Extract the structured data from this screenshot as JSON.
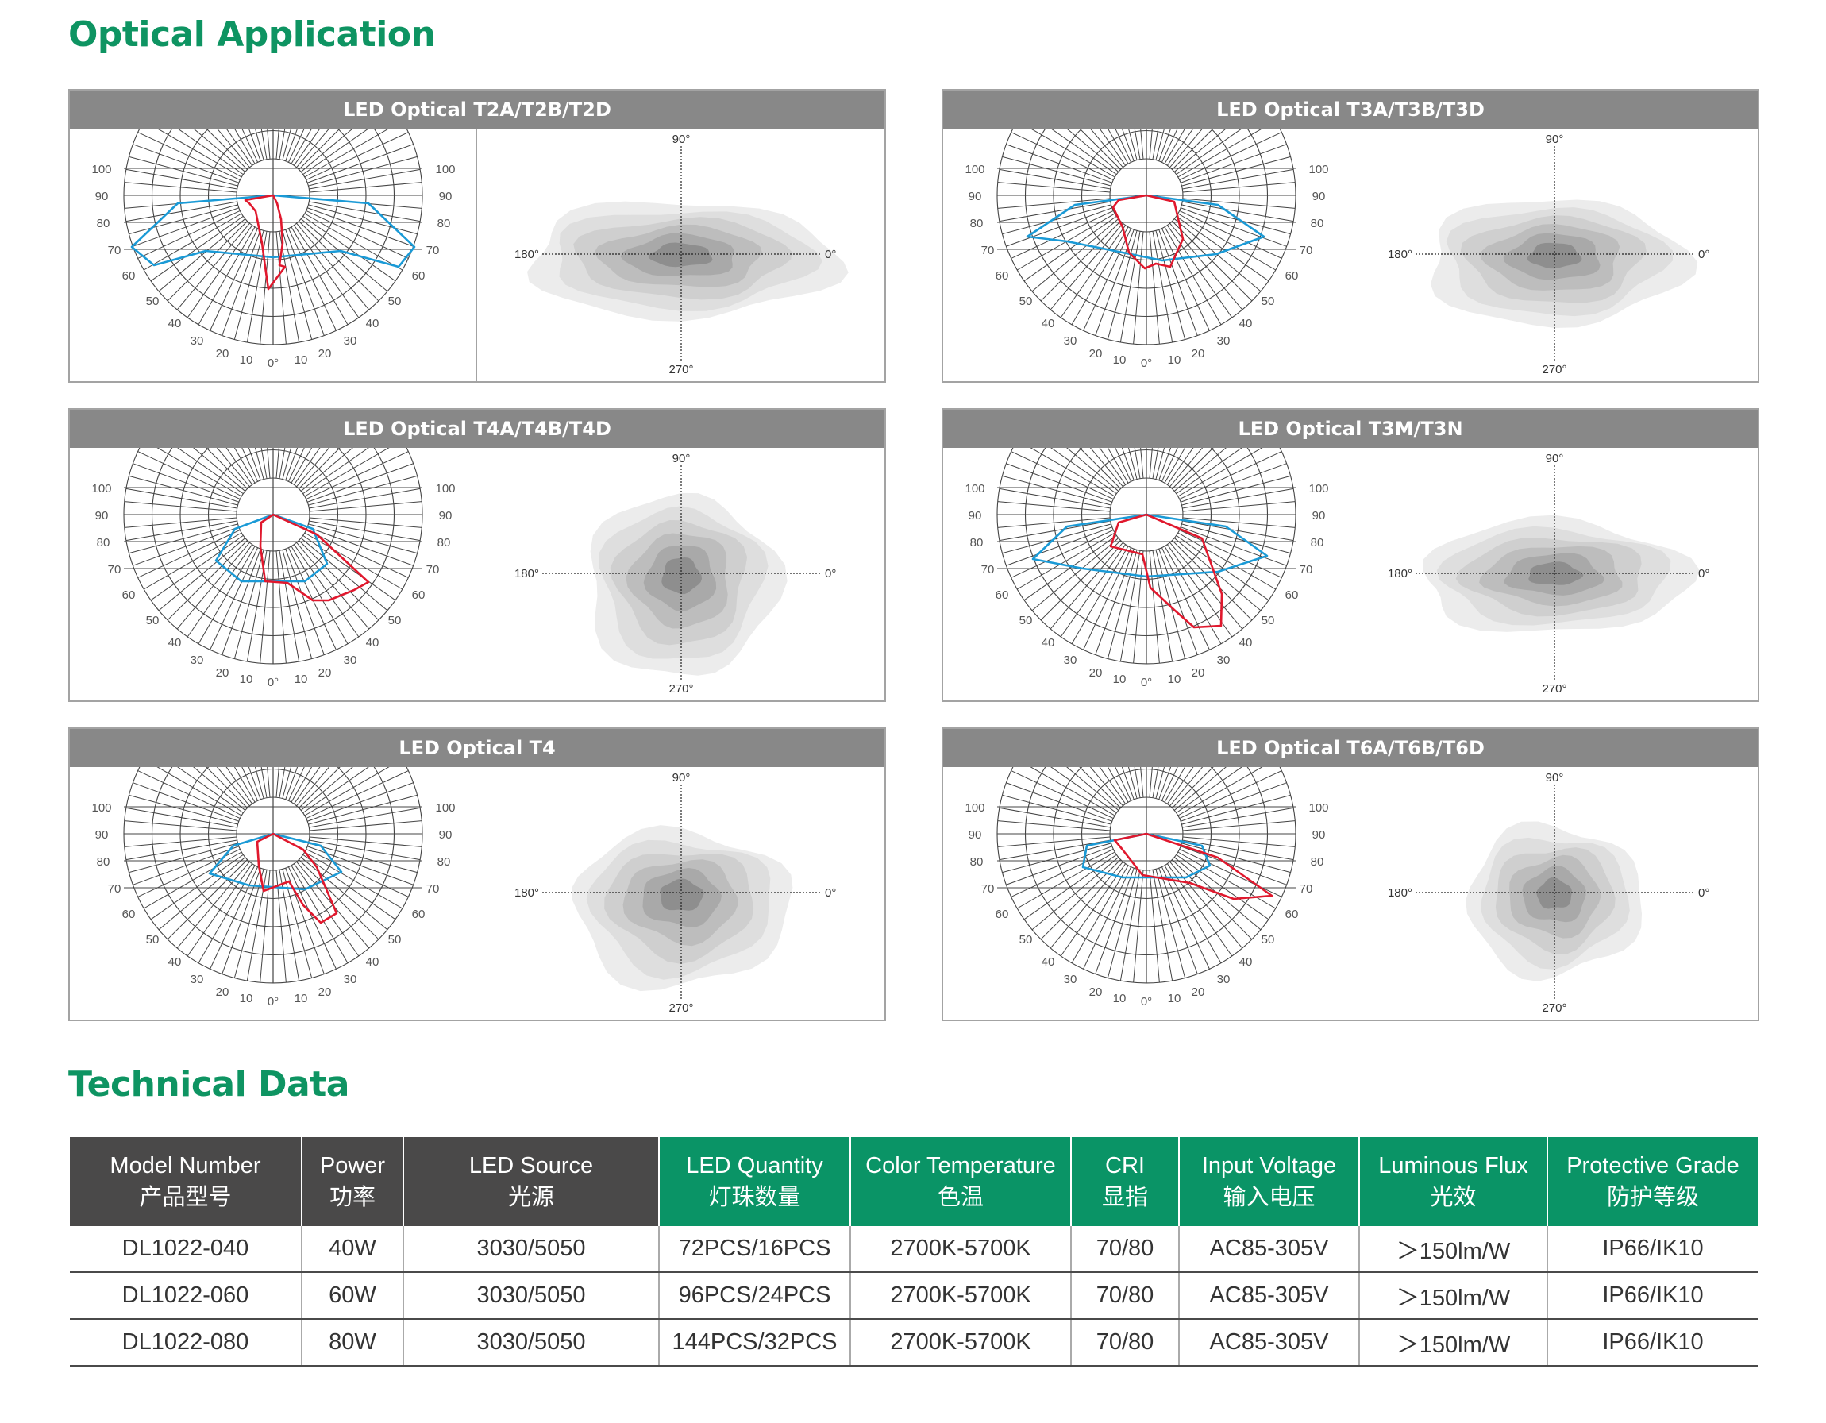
{
  "sections": {
    "optical_title": "Optical Application",
    "technical_title": "Technical Data"
  },
  "iso_labels": {
    "top": "90°",
    "bottom": "270°",
    "left": "180°",
    "right": "0°"
  },
  "polar_labels": {
    "left": [
      "100",
      "90",
      "80",
      "70",
      "60",
      "50",
      "40",
      "30",
      "20",
      "10"
    ],
    "center": "0°",
    "right": [
      "10",
      "20",
      "30",
      "40",
      "50",
      "60",
      "70",
      "80",
      "90",
      "100"
    ]
  },
  "panels": [
    {
      "title": "LED Optical T2A/T2B/T2D"
    },
    {
      "title": "LED Optical T3A/T3B/T3D"
    },
    {
      "title": "LED Optical T4A/T4B/T4D"
    },
    {
      "title": "LED Optical T3M/T3N"
    },
    {
      "title": "LED Optical T4"
    },
    {
      "title": "LED Optical T6A/T6B/T6D"
    }
  ],
  "colors": {
    "brand_green": "#0a9466",
    "header_dark": "#4a4949",
    "panel_header": "#888888",
    "curve_red": "#e0182d",
    "curve_blue": "#1a9ad6"
  },
  "table": {
    "headers": [
      {
        "en": "Model Number",
        "cn": "产品型号",
        "style": "dark"
      },
      {
        "en": "Power",
        "cn": "功率",
        "style": "dark"
      },
      {
        "en": "LED Source",
        "cn": "光源",
        "style": "dark"
      },
      {
        "en": "LED Quantity",
        "cn": "灯珠数量",
        "style": "green"
      },
      {
        "en": "Color Temperature",
        "cn": "色温",
        "style": "green"
      },
      {
        "en": "CRI",
        "cn": "显指",
        "style": "green"
      },
      {
        "en": "Input Voltage",
        "cn": "输入电压",
        "style": "green"
      },
      {
        "en": "Luminous Flux",
        "cn": "光效",
        "style": "green"
      },
      {
        "en": "Protective Grade",
        "cn": "防护等级",
        "style": "green"
      }
    ],
    "rows": [
      [
        "DL1022-040",
        "40W",
        "3030/5050",
        "72PCS/16PCS",
        "2700K-5700K",
        "70/80",
        "AC85-305V",
        "＞150lm/W",
        "IP66/IK10"
      ],
      [
        "DL1022-060",
        "60W",
        "3030/5050",
        "96PCS/24PCS",
        "2700K-5700K",
        "70/80",
        "AC85-305V",
        "＞150lm/W",
        "IP66/IK10"
      ],
      [
        "DL1022-080",
        "80W",
        "3030/5050",
        "144PCS/32PCS",
        "2700K-5700K",
        "70/80",
        "AC85-305V",
        "＞150lm/W",
        "IP66/IK10"
      ]
    ]
  }
}
